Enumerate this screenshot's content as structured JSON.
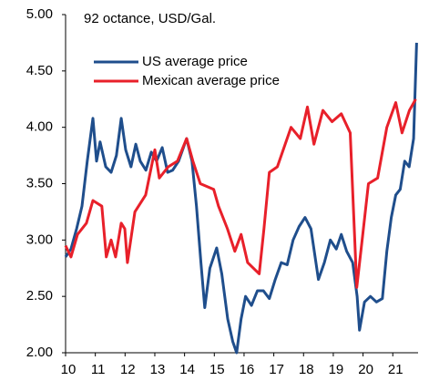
{
  "chart_data": {
    "type": "line",
    "title": "92 octance, USD/Gal.",
    "xlim": [
      10,
      21.85
    ],
    "xticks": [
      10,
      11,
      12,
      13,
      14,
      15,
      16,
      17,
      18,
      19,
      20,
      21
    ],
    "ylim": [
      2,
      5
    ],
    "yticks": [
      {
        "value": 2,
        "label": "2.00"
      },
      {
        "value": 2.5,
        "label": "2.50"
      },
      {
        "value": 3,
        "label": "3.00"
      },
      {
        "value": 3.5,
        "label": "3.50"
      },
      {
        "value": 4,
        "label": "4.00"
      },
      {
        "value": 4.5,
        "label": "4.50"
      },
      {
        "value": 5,
        "label": "5.00"
      }
    ],
    "legend": "upper left",
    "series": [
      {
        "name": "US average price",
        "color": "#1f4e8c",
        "x": [
          10.0,
          10.18,
          10.37,
          10.55,
          10.73,
          10.92,
          11.04,
          11.16,
          11.35,
          11.53,
          11.71,
          11.87,
          12.02,
          12.2,
          12.36,
          12.51,
          12.7,
          12.88,
          13.06,
          13.25,
          13.43,
          13.6,
          13.8,
          14.07,
          14.25,
          14.4,
          14.55,
          14.68,
          14.85,
          15.08,
          15.25,
          15.45,
          15.62,
          15.75,
          15.9,
          16.05,
          16.25,
          16.45,
          16.65,
          16.85,
          17.05,
          17.25,
          17.45,
          17.65,
          17.85,
          18.05,
          18.25,
          18.5,
          18.7,
          18.9,
          19.1,
          19.27,
          19.45,
          19.65,
          19.8,
          19.88,
          20.05,
          20.25,
          20.45,
          20.65,
          20.8,
          20.95,
          21.1,
          21.25,
          21.4,
          21.55,
          21.7,
          21.8
        ],
        "values": [
          2.85,
          2.92,
          3.1,
          3.3,
          3.7,
          4.08,
          3.7,
          3.87,
          3.65,
          3.6,
          3.75,
          4.08,
          3.8,
          3.65,
          3.85,
          3.7,
          3.62,
          3.78,
          3.7,
          3.82,
          3.6,
          3.62,
          3.7,
          3.9,
          3.7,
          3.3,
          2.8,
          2.4,
          2.75,
          2.93,
          2.7,
          2.3,
          2.1,
          2.0,
          2.3,
          2.5,
          2.42,
          2.55,
          2.55,
          2.48,
          2.65,
          2.8,
          2.78,
          3.0,
          3.12,
          3.2,
          3.1,
          2.65,
          2.8,
          3.0,
          2.92,
          3.05,
          2.9,
          2.8,
          2.5,
          2.2,
          2.45,
          2.5,
          2.45,
          2.48,
          2.9,
          3.2,
          3.4,
          3.45,
          3.7,
          3.65,
          3.9,
          4.75
        ]
      },
      {
        "name": "Mexican average price",
        "color": "#e8202a",
        "x": [
          10.0,
          10.18,
          10.4,
          10.7,
          10.92,
          11.22,
          11.37,
          11.53,
          11.68,
          11.87,
          11.99,
          12.08,
          12.33,
          12.69,
          13.0,
          13.15,
          13.45,
          13.76,
          14.07,
          14.28,
          14.53,
          14.98,
          15.14,
          15.44,
          15.69,
          15.9,
          16.12,
          16.51,
          16.67,
          16.85,
          17.12,
          17.58,
          17.89,
          18.13,
          18.35,
          18.65,
          18.96,
          19.27,
          19.57,
          19.79,
          19.97,
          20.18,
          20.49,
          20.8,
          21.1,
          21.31,
          21.56,
          21.77
        ],
        "values": [
          2.95,
          2.85,
          3.05,
          3.15,
          3.35,
          3.3,
          2.85,
          3.0,
          2.85,
          3.15,
          3.1,
          2.8,
          3.25,
          3.4,
          3.8,
          3.55,
          3.65,
          3.7,
          3.9,
          3.7,
          3.5,
          3.45,
          3.3,
          3.1,
          2.9,
          3.05,
          2.8,
          2.7,
          3.1,
          3.6,
          3.65,
          4.0,
          3.9,
          4.18,
          3.85,
          4.15,
          4.05,
          4.12,
          3.95,
          2.58,
          3.0,
          3.5,
          3.55,
          4.0,
          4.22,
          3.95,
          4.15,
          4.25
        ]
      }
    ]
  }
}
